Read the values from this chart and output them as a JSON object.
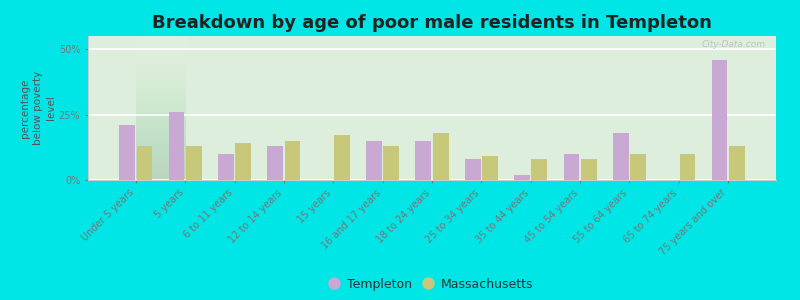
{
  "title": "Breakdown by age of poor male residents in Templeton",
  "ylabel": "percentage\nbelow poverty\nlevel",
  "categories": [
    "Under 5 years",
    "5 years",
    "6 to 11 years",
    "12 to 14 years",
    "15 years",
    "16 and 17 years",
    "18 to 24 years",
    "25 to 34 years",
    "35 to 44 years",
    "45 to 54 years",
    "55 to 64 years",
    "65 to 74 years",
    "75 years and over"
  ],
  "templeton": [
    21,
    26,
    10,
    13,
    0,
    15,
    15,
    8,
    2,
    10,
    18,
    0,
    46
  ],
  "massachusetts": [
    13,
    13,
    14,
    15,
    17,
    13,
    18,
    9,
    8,
    8,
    10,
    10,
    13
  ],
  "templeton_color": "#c9a8d4",
  "massachusetts_color": "#c8c87a",
  "bg_color_top": "#e8eed8",
  "bg_color_bottom": "#ddeedd",
  "outer_bg": "#00e5e5",
  "yticks": [
    0,
    25,
    50
  ],
  "ytick_labels": [
    "0%",
    "25%",
    "50%"
  ],
  "ylim": [
    0,
    55
  ],
  "title_fontsize": 13,
  "axis_label_fontsize": 7.5,
  "tick_fontsize": 7,
  "legend_fontsize": 9,
  "watermark": "City-Data.com"
}
